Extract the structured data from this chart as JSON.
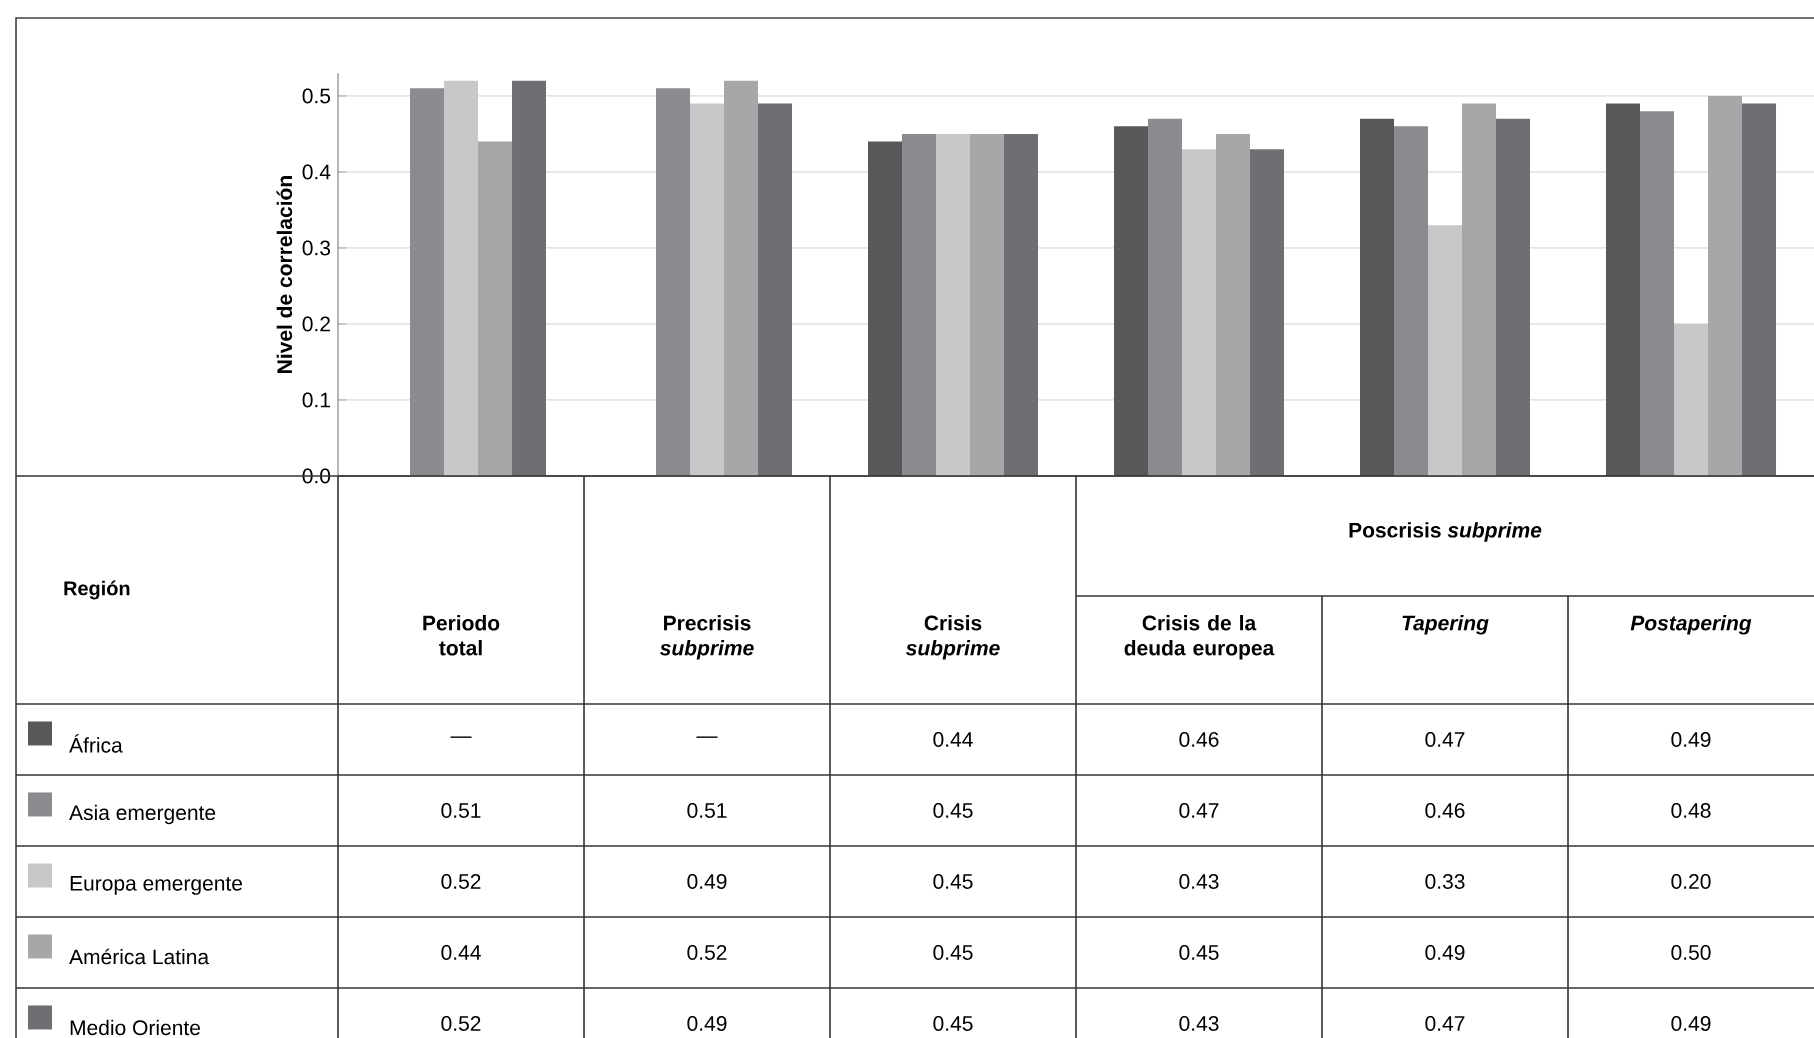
{
  "chart_data": {
    "type": "bar",
    "ylabel": "Nivel de correlación",
    "categories": [
      "Periodo total",
      "Precrisis *subprime*",
      "Crisis *subprime*",
      "Crisis de la deuda europea",
      "*Tapering*",
      "*Postapering*"
    ],
    "annotations": [
      "Poscrisis *subprime*",
      "Región"
    ],
    "series": [
      {
        "name": "África",
        "color": "#58585a",
        "values": [
          null,
          null,
          0.44,
          0.46,
          0.47,
          0.49
        ],
        "value_labels": [
          "—",
          "—",
          "0.44",
          "0.46",
          "0.47",
          "0.49"
        ]
      },
      {
        "name": "Asia emergente",
        "color": "#8a8b8e",
        "values": [
          0.51,
          0.51,
          0.45,
          0.47,
          0.46,
          0.48
        ],
        "value_labels": [
          "0.51",
          "0.51",
          "0.45",
          "0.47",
          "0.46",
          "0.48"
        ]
      },
      {
        "name": "Europa emergente",
        "color": "#c8c8ca",
        "values": [
          0.52,
          0.49,
          0.45,
          0.43,
          0.33,
          0.2
        ],
        "value_labels": [
          "0.52",
          "0.49",
          "0.45",
          "0.43",
          "0.33",
          "0.20"
        ]
      },
      {
        "name": "América Latina",
        "color": "#a6a7a9",
        "values": [
          0.44,
          0.52,
          0.45,
          0.45,
          0.49,
          0.5
        ],
        "value_labels": [
          "0.44",
          "0.52",
          "0.45",
          "0.45",
          "0.49",
          "0.50"
        ]
      },
      {
        "name": "Medio Oriente",
        "color": "#6e6f72",
        "values": [
          0.52,
          0.49,
          0.45,
          0.43,
          0.47,
          0.49
        ],
        "value_labels": [
          "0.52",
          "0.49",
          "0.45",
          "0.43",
          "0.47",
          "0.49"
        ]
      }
    ],
    "ylim": [
      0,
      0.53
    ],
    "yticks": [
      {
        "value": 0,
        "label": "0.0"
      },
      0.1,
      0.2,
      0.3,
      0.4,
      0.5
    ],
    "grid": "y",
    "legend": "bottom"
  }
}
